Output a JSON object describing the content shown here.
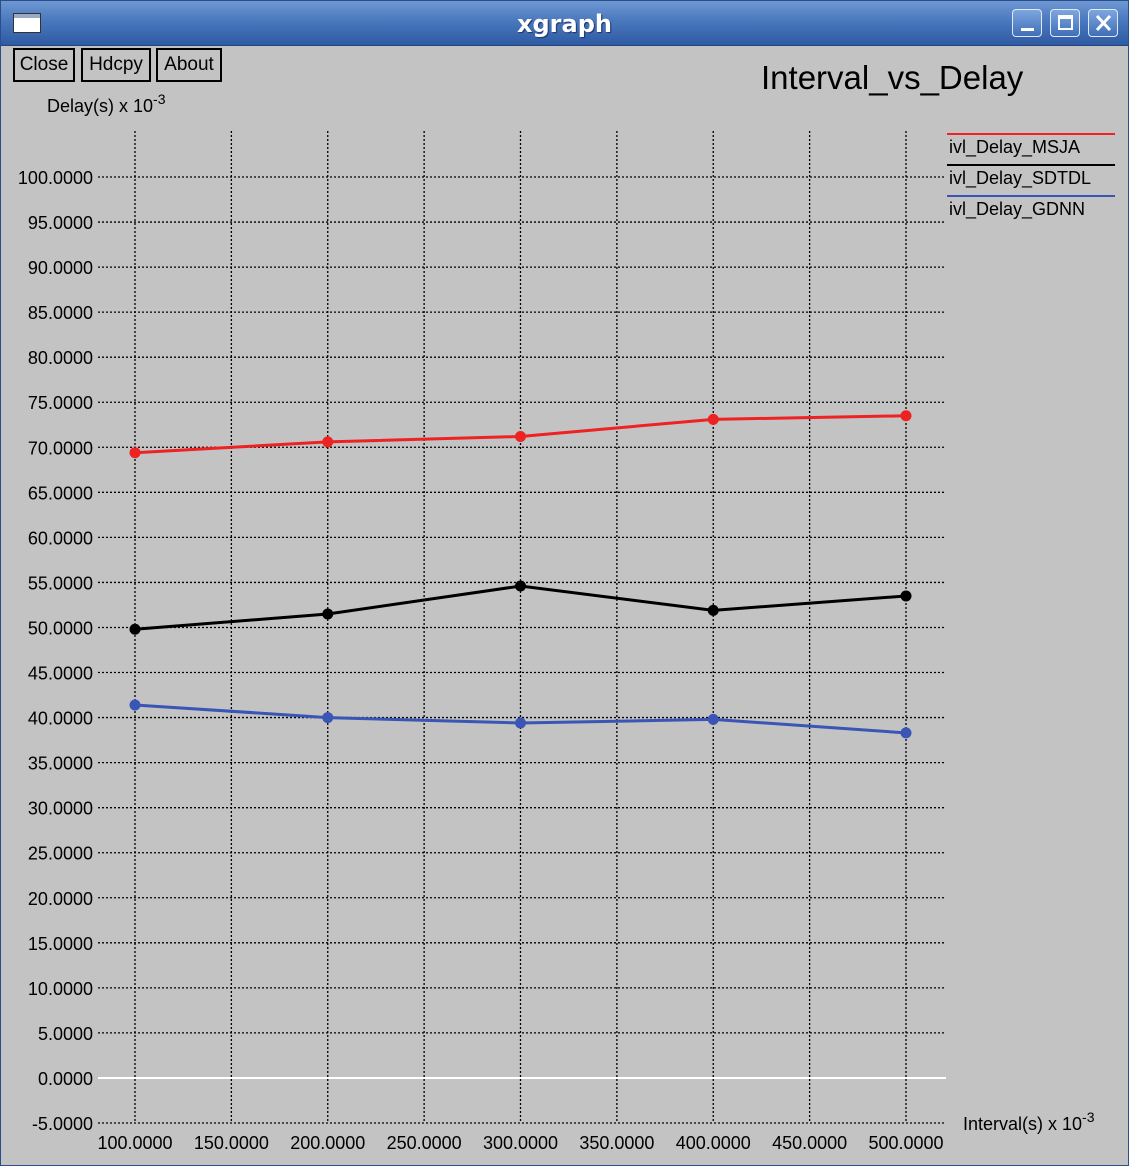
{
  "window": {
    "title": "xgraph",
    "controls": [
      "minimize-icon",
      "maximize-icon",
      "close-icon"
    ]
  },
  "toolbar": {
    "close_label": "Close",
    "hdcpy_label": "Hdcpy",
    "about_label": "About"
  },
  "colors": {
    "background": "#c3c3c3",
    "grid": "#000000",
    "zero_line": "#ffffff"
  },
  "chart_data": {
    "type": "line",
    "title": "Interval_vs_Delay",
    "xlabel": "Interval(s) x 10",
    "xlabel_exp": "-3",
    "ylabel": "Delay(s) x 10",
    "ylabel_exp": "-3",
    "x": [
      100,
      200,
      300,
      400,
      500
    ],
    "xlim": [
      100,
      500
    ],
    "ylim": [
      -5,
      100
    ],
    "x_ticks": [
      "100.0000",
      "150.0000",
      "200.0000",
      "250.0000",
      "300.0000",
      "350.0000",
      "400.0000",
      "450.0000",
      "500.0000"
    ],
    "y_ticks": [
      "-5.0000",
      "0.0000",
      "5.0000",
      "10.0000",
      "15.0000",
      "20.0000",
      "25.0000",
      "30.0000",
      "35.0000",
      "40.0000",
      "45.0000",
      "50.0000",
      "55.0000",
      "60.0000",
      "65.0000",
      "70.0000",
      "75.0000",
      "80.0000",
      "85.0000",
      "90.0000",
      "95.0000",
      "100.0000"
    ],
    "grid": true,
    "grid_style": "dotted",
    "legend_position": "right",
    "series": [
      {
        "name": "ivl_Delay_MSJA",
        "color": "#ee2222",
        "values": [
          69.4,
          70.6,
          71.2,
          73.1,
          73.5
        ]
      },
      {
        "name": "ivl_Delay_SDTDL",
        "color": "#000000",
        "values": [
          49.8,
          51.5,
          54.6,
          51.9,
          53.5
        ]
      },
      {
        "name": "ivl_Delay_GDNN",
        "color": "#3a55b5",
        "values": [
          41.4,
          40.0,
          39.4,
          39.8,
          38.3
        ]
      }
    ]
  }
}
